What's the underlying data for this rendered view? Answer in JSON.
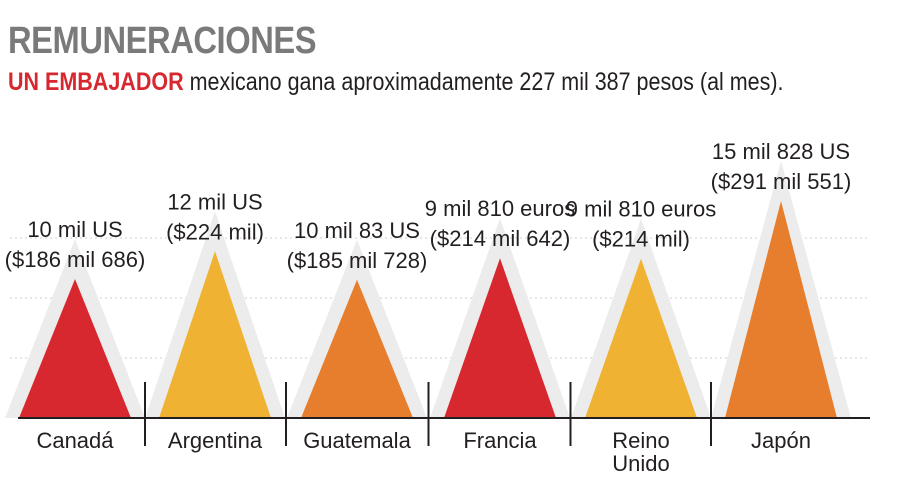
{
  "title": "REMUNERACIONES",
  "subtitle": {
    "highlight": "UN EMBAJADOR",
    "rest": " mexicano gana aproximadamente 227 mil 387 pesos (al mes)."
  },
  "colors": {
    "red": "#d7282f",
    "yellow": "#f0b233",
    "orange": "#e67e2e",
    "title_gray": "#7a7a7a",
    "shadow": "#ececec"
  },
  "chart_data": {
    "type": "bar",
    "unit": "pesos mexicanos (al mes)",
    "categories": [
      "Canadá",
      "Argentina",
      "Guatemala",
      "Francia",
      "Reino Unido",
      "Japón"
    ],
    "values": [
      186686,
      224000,
      185728,
      214642,
      214000,
      291551
    ],
    "labels": [
      [
        "10 mil US",
        "($186 mil 686)"
      ],
      [
        "12 mil US",
        "($224 mil)"
      ],
      [
        "10 mil 83 US",
        "($185 mil 728)"
      ],
      [
        "9 mil 810 euros",
        "($214 mil 642)"
      ],
      [
        "9 mil 810 euros",
        "($214 mil)"
      ],
      [
        "15 mil 828 US",
        "($291 mil 551)"
      ]
    ],
    "category_lines": [
      [
        "Canadá"
      ],
      [
        "Argentina"
      ],
      [
        "Guatemala"
      ],
      [
        "Francia"
      ],
      [
        "Reino",
        "Unido"
      ],
      [
        "Japón"
      ]
    ],
    "bar_colors": [
      "red",
      "yellow",
      "orange",
      "red",
      "yellow",
      "orange"
    ],
    "grid": true
  }
}
